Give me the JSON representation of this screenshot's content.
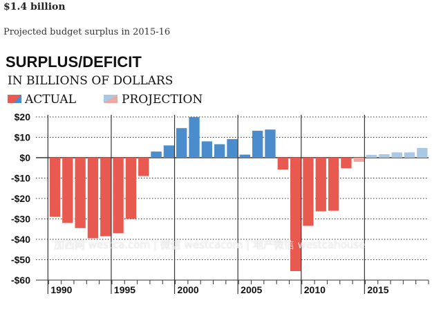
{
  "article": {
    "headline": "$1.4 billion",
    "subhead": "Projected budget surplus in 2015-16"
  },
  "watermark": "加西网 westca.com | 微信 westcacom | 地产微信 westcahouse",
  "colors": {
    "actual": "#e8594f",
    "actual_surplus": "#4a8ccc",
    "projection_deficit": "#f2a6a0",
    "projection_surplus": "#a9c8e6",
    "grid": "#333333",
    "text": "#111111"
  },
  "chart_data": {
    "type": "bar",
    "title": "SURPLUS/DEFICIT",
    "subtitle": "IN BILLIONS OF DOLLARS",
    "legend": [
      {
        "name": "ACTUAL",
        "kind": "actual"
      },
      {
        "name": "PROJECTION",
        "kind": "projection"
      }
    ],
    "legend_position": "top-left",
    "ylim": [
      -60,
      20
    ],
    "yticks": [
      20,
      10,
      0,
      -10,
      -20,
      -30,
      -40,
      -50,
      -60
    ],
    "ytick_labels": [
      "$20",
      "$10",
      "$0",
      "-$10",
      "-$20",
      "-$30",
      "-$40",
      "-$50",
      "-$60"
    ],
    "xlim": [
      1989,
      2020
    ],
    "xtick_labels": [
      {
        "year": 1990,
        "label": "1990"
      },
      {
        "year": 1995,
        "label": "1995"
      },
      {
        "year": 2000,
        "label": "2000"
      },
      {
        "year": 2005,
        "label": "2005"
      },
      {
        "year": 2010,
        "label": "2010"
      },
      {
        "year": 2015,
        "label": "2015"
      }
    ],
    "grid": "horizontal dotted",
    "series": [
      {
        "name": "ACTUAL",
        "x": [
          1990,
          1991,
          1992,
          1993,
          1994,
          1995,
          1996,
          1997,
          1998,
          1999,
          2000,
          2001,
          2002,
          2003,
          2004,
          2005,
          2006,
          2007,
          2008,
          2009,
          2010,
          2011,
          2012,
          2013
        ],
        "values": [
          -29,
          -32,
          -34.5,
          -39.5,
          -38.5,
          -37,
          -30,
          -9,
          3,
          6,
          14.5,
          19.9,
          8,
          6.6,
          9.1,
          1.5,
          13.2,
          13.8,
          -5.8,
          -55.6,
          -33.4,
          -26.3,
          -26,
          -5.2
        ]
      },
      {
        "name": "PROJECTION",
        "x": [
          2014,
          2015,
          2016,
          2017,
          2018,
          2019
        ],
        "values": [
          -2,
          1.4,
          1.7,
          2.6,
          2.6,
          4.8
        ]
      }
    ]
  }
}
